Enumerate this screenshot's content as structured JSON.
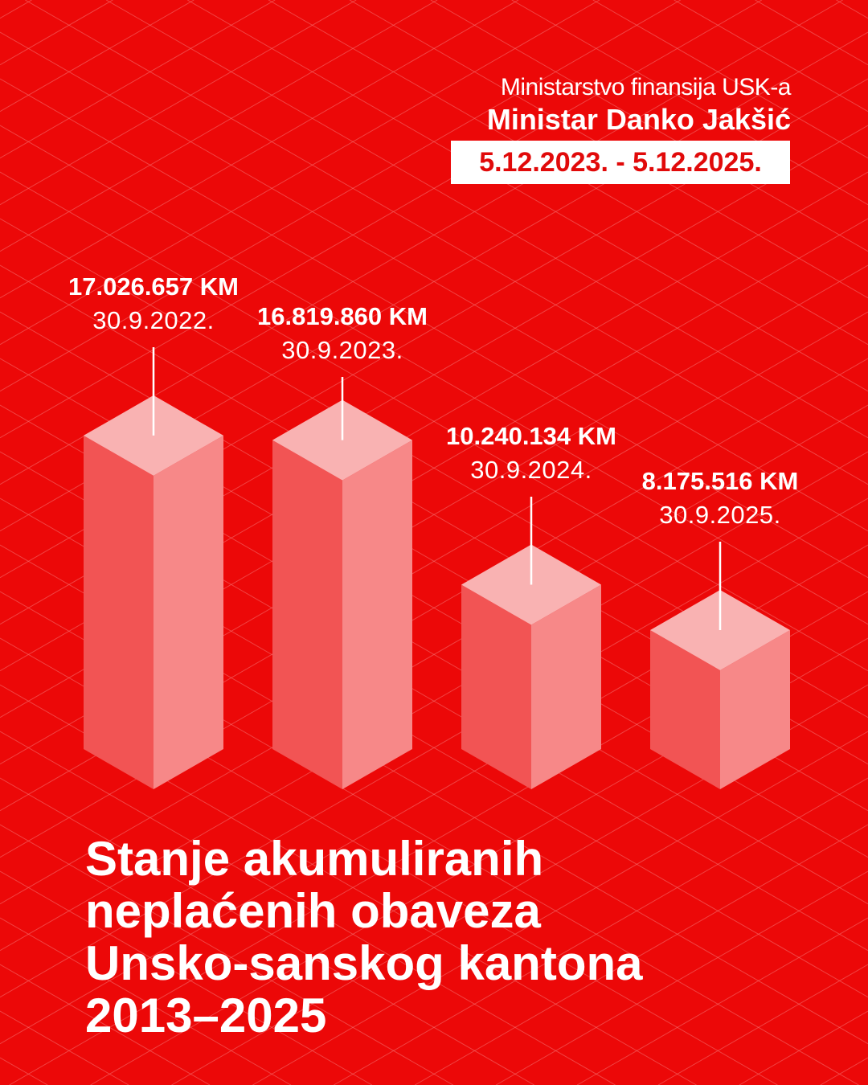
{
  "header": {
    "ministry": "Ministarstvo finansija USK-a",
    "minister": "Ministar Danko Jakšić",
    "period": "5.12.2023. - 5.12.2025."
  },
  "colors": {
    "background": "#ec0808",
    "bar_left_face": "#f25454",
    "bar_right_face": "#f78888",
    "bar_top_face": "#f9b2b2",
    "grid": "#f46a6a"
  },
  "chart_data": {
    "type": "bar",
    "style": "isometric 3D columns",
    "categories": [
      "30.9.2022.",
      "30.9.2023.",
      "30.9.2024.",
      "30.9.2025."
    ],
    "values": [
      17026657,
      16819860,
      10240134,
      8175516
    ],
    "value_labels": [
      "17.026.657 KM",
      "16.819.860 KM",
      "10.240.134 KM",
      "8.175.516 KM"
    ],
    "unit": "KM",
    "title_lines": [
      "Stanje akumuliranih",
      "neplaćenih obaveza",
      "Unsko-sanskog kantona",
      "2013–2025"
    ],
    "grid": true
  }
}
